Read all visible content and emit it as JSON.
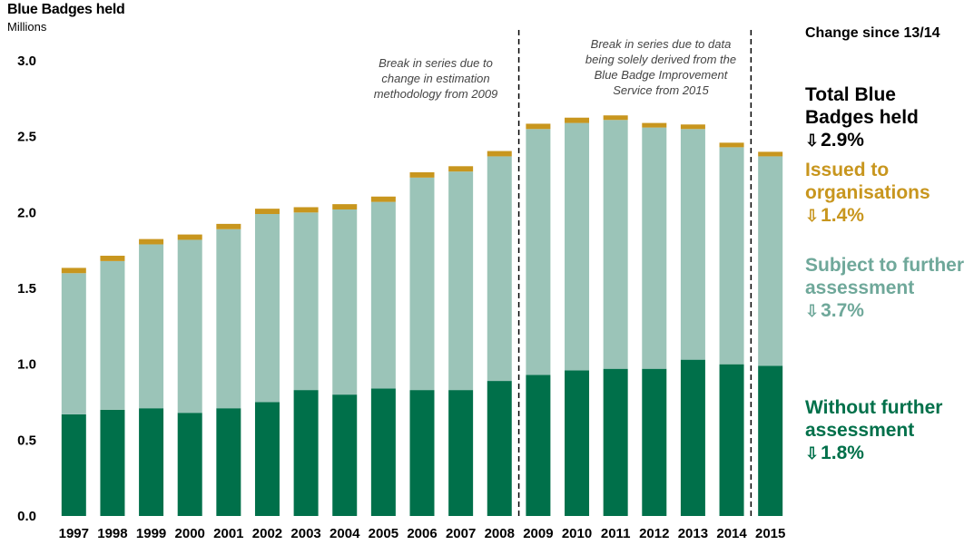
{
  "title": "Blue Badges held",
  "unit": "Millions",
  "side_heading": "Change since 13/14",
  "legend": {
    "total": {
      "label": "Total Blue Badges held",
      "change": "2.9%",
      "color": "#000000",
      "icon": "down-arrow-icon"
    },
    "organisations": {
      "label": "Issued to organisations",
      "change": "1.4%",
      "color": "#C8961E",
      "icon": "down-arrow-icon"
    },
    "subject": {
      "label": "Subject to further assessment",
      "change": "3.7%",
      "color": "#6FA89A",
      "icon": "down-arrow-icon"
    },
    "without": {
      "label": "Without further assessment",
      "change": "1.8%",
      "color": "#00704A",
      "icon": "down-arrow-icon"
    }
  },
  "annotations": [
    {
      "text": [
        "Break in series due to",
        "change in estimation",
        "methodology from 2009"
      ],
      "after": "2008"
    },
    {
      "text": [
        "Break in series due to data",
        "being solely derived from the",
        "Blue Badge Improvement",
        "Service from 2015"
      ],
      "after": "2014"
    }
  ],
  "chart_data": {
    "type": "bar",
    "stacked": true,
    "title": "Blue Badges held",
    "ylabel": "Millions",
    "ylim": [
      0,
      3.0
    ],
    "yticks": [
      "0.0",
      "0.5",
      "1.0",
      "1.5",
      "2.0",
      "2.5",
      "3.0"
    ],
    "grid": false,
    "categories": [
      "1997",
      "1998",
      "1999",
      "2000",
      "2001",
      "2002",
      "2003",
      "2004",
      "2005",
      "2006",
      "2007",
      "2008",
      "2009",
      "2010",
      "2011",
      "2012",
      "2013",
      "2014",
      "2015"
    ],
    "series": [
      {
        "name": "Without further assessment",
        "color": "#00704A",
        "values": [
          0.67,
          0.7,
          0.71,
          0.68,
          0.71,
          0.75,
          0.83,
          0.8,
          0.84,
          0.83,
          0.83,
          0.89,
          0.93,
          0.96,
          0.97,
          0.97,
          1.03,
          1.0,
          0.99
        ]
      },
      {
        "name": "Subject to further assessment",
        "color": "#9BC4B8",
        "values": [
          0.93,
          0.98,
          1.08,
          1.14,
          1.18,
          1.24,
          1.17,
          1.22,
          1.23,
          1.4,
          1.44,
          1.48,
          1.62,
          1.63,
          1.64,
          1.59,
          1.52,
          1.43,
          1.38
        ]
      },
      {
        "name": "Issued to organisations",
        "color": "#C8961E",
        "values": [
          0.035,
          0.035,
          0.035,
          0.035,
          0.035,
          0.035,
          0.035,
          0.035,
          0.035,
          0.035,
          0.035,
          0.035,
          0.035,
          0.035,
          0.03,
          0.03,
          0.03,
          0.03,
          0.03
        ]
      }
    ]
  }
}
